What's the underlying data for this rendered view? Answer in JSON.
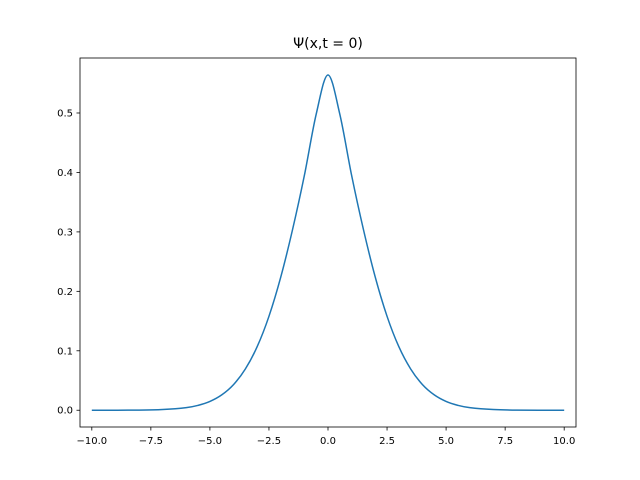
{
  "chart_data": {
    "type": "line",
    "title": "Ψ(x,t = 0)",
    "xlabel": "",
    "ylabel": "",
    "xlim": [
      -10.5,
      10.5
    ],
    "ylim": [
      -0.0282,
      0.5925
    ],
    "grid": false,
    "x_ticks": [
      -10.0,
      -7.5,
      -5.0,
      -2.5,
      0.0,
      2.5,
      5.0,
      7.5,
      10.0
    ],
    "x_tick_labels": [
      "−10.0",
      "−7.5",
      "−5.0",
      "−2.5",
      "0.0",
      "2.5",
      "5.0",
      "7.5",
      "10.0"
    ],
    "y_ticks": [
      0.0,
      0.1,
      0.2,
      0.3,
      0.4,
      0.5
    ],
    "y_tick_labels": [
      "0.0",
      "0.1",
      "0.2",
      "0.3",
      "0.4",
      "0.5"
    ],
    "series": [
      {
        "color": "#1f77b4",
        "x": [
          -10.0,
          -8.0,
          -7.0,
          -6.0,
          -5.5,
          -5.0,
          -4.5,
          -4.0,
          -3.5,
          -3.0,
          -2.5,
          -2.0,
          -1.5,
          -1.0,
          -0.5,
          0.0,
          0.5,
          1.0,
          1.5,
          2.0,
          2.5,
          3.0,
          3.5,
          4.0,
          4.5,
          5.0,
          5.5,
          6.0,
          7.0,
          8.0,
          10.0
        ],
        "y": [
          0.0,
          0.0002,
          0.0012,
          0.0044,
          0.0082,
          0.0148,
          0.0258,
          0.0431,
          0.0694,
          0.1068,
          0.158,
          0.224,
          0.304,
          0.395,
          0.498,
          0.564,
          0.498,
          0.395,
          0.304,
          0.224,
          0.158,
          0.1068,
          0.0694,
          0.0431,
          0.0258,
          0.0148,
          0.0082,
          0.0044,
          0.0012,
          0.0002,
          0.0
        ]
      }
    ]
  }
}
